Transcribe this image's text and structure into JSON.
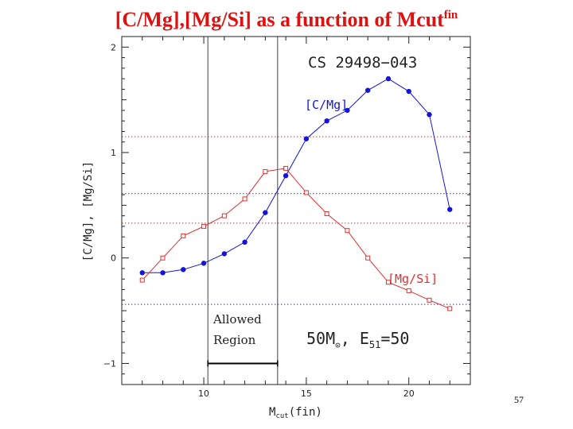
{
  "slide": {
    "title": "[C/Mg],[Mg/Si] as a function of Mcut",
    "title_sup": "fin",
    "page_number": "57"
  },
  "chart_data": {
    "type": "line",
    "title": "CS 29498−043",
    "xlabel": {
      "main": "M",
      "sub": "cut",
      "rest": "(fin)"
    },
    "ylabel": "[C/Mg], [Mg/Si]",
    "xlim": [
      6,
      23
    ],
    "ylim": [
      -1.2,
      2.1
    ],
    "x_ticks": [
      10,
      15,
      20
    ],
    "y_ticks": [
      -1,
      0,
      1,
      2
    ],
    "x_tick_labels": [
      "10",
      "15",
      "20"
    ],
    "y_tick_labels": [
      "−1",
      "0",
      "1",
      "2"
    ],
    "grid": false,
    "series": [
      {
        "name": "[C/Mg]",
        "color": "#1414d8",
        "marker": "filled-circle",
        "x": [
          7,
          8,
          9,
          10,
          11,
          12,
          13,
          14,
          15,
          16,
          17,
          18,
          19,
          20,
          21,
          22
        ],
        "y": [
          -0.14,
          -0.14,
          -0.11,
          -0.05,
          0.04,
          0.15,
          0.43,
          0.78,
          1.13,
          1.3,
          1.4,
          1.59,
          1.7,
          1.58,
          1.36,
          0.46
        ]
      },
      {
        "name": "[Mg/Si]",
        "color": "#e03030",
        "marker": "open-square",
        "x": [
          7,
          8,
          9,
          10,
          11,
          12,
          13,
          14,
          15,
          16,
          17,
          18,
          19,
          20,
          21,
          22
        ],
        "y": [
          -0.21,
          0.0,
          0.21,
          0.3,
          0.4,
          0.56,
          0.82,
          0.85,
          0.62,
          0.42,
          0.26,
          0.0,
          -0.23,
          -0.31,
          -0.4,
          -0.48
        ]
      }
    ],
    "reference_lines": [
      {
        "y": 1.15,
        "color": "#e03030",
        "style": "dotted"
      },
      {
        "y": 0.33,
        "color": "#e03030",
        "style": "dotted"
      },
      {
        "y": 0.61,
        "color": "#3030e0",
        "style": "dotted"
      },
      {
        "y": -0.44,
        "color": "#3030e0",
        "style": "dotted"
      }
    ],
    "vertical_lines": [
      10.2,
      13.6
    ],
    "allowed_region": {
      "x": [
        10.2,
        13.6
      ],
      "y": -1.0,
      "label_line1": "Allowed",
      "label_line2": "Region"
    },
    "annotations": {
      "mass_label": "50M",
      "mass_symbol": "⊙",
      "energy_label": ", E",
      "energy_sub": "51",
      "energy_value": "=50"
    }
  }
}
